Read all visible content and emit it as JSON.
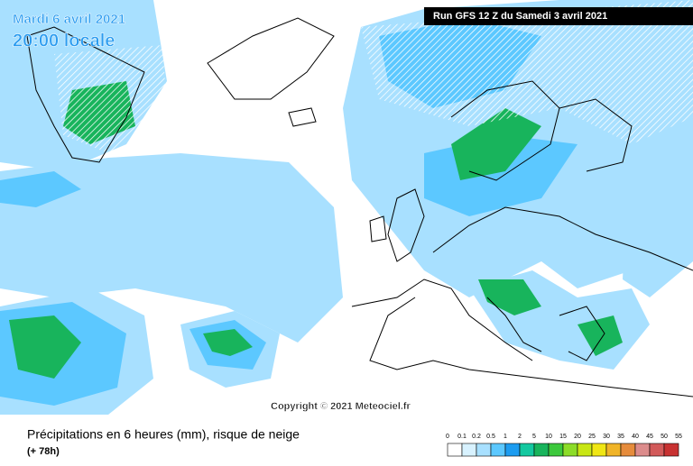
{
  "header": {
    "date": "Mardi 6 avril 2021",
    "time": "20:00 locale",
    "run": "Run GFS 12 Z du Samedi 3 avril 2021"
  },
  "copyright": "Copyright © 2021 Meteociel.fr",
  "footer": {
    "title": "Précipitations en 6 heures (mm), risque de neige",
    "subtitle": "(+ 78h)"
  },
  "legend": {
    "ticks": [
      0,
      0.1,
      0.2,
      0.5,
      1,
      2,
      5,
      10,
      15,
      20,
      25,
      30,
      35,
      40,
      45,
      50,
      55
    ],
    "colors": [
      "#ffffff",
      "#d8f2ff",
      "#a8e0ff",
      "#5cc8ff",
      "#1c9cf0",
      "#14c8a0",
      "#18b45c",
      "#3cc83c",
      "#8cdc28",
      "#c8e614",
      "#f0e614",
      "#f0b428",
      "#e68c3c",
      "#dc8c8c",
      "#d25a5a",
      "#c83232"
    ]
  }
}
